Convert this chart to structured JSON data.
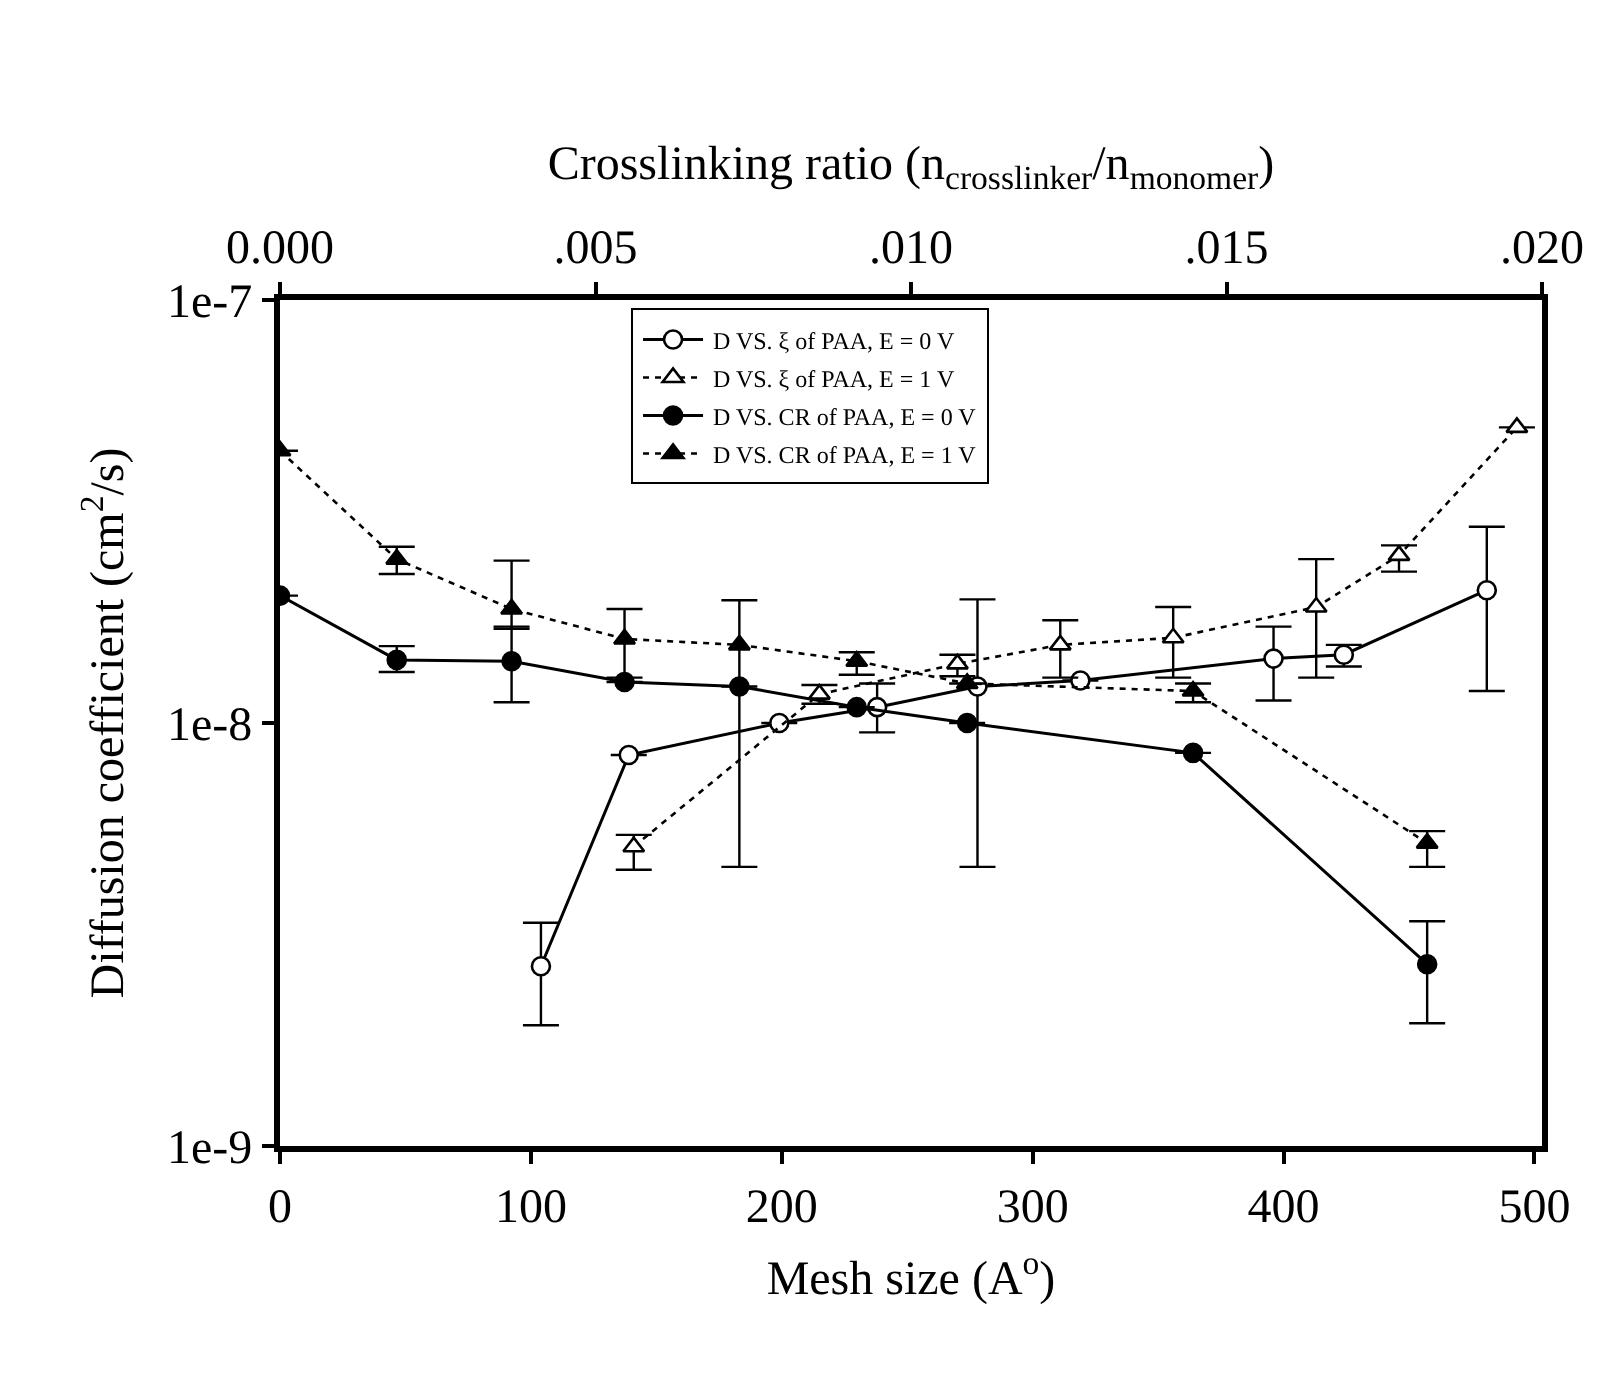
{
  "chart_data": {
    "type": "line",
    "xlabel": "Mesh size (A$^{o}$)",
    "ylabel": "Diffusion coefficient (cm$^{2}$/s)",
    "x2label": "Crosslinking ratio (n$_{crosslinker}$/n$_{monomer}$)",
    "xlim": [
      0,
      503
    ],
    "xticks": [
      0,
      100,
      200,
      300,
      400,
      500
    ],
    "x2lim": [
      0,
      0.02
    ],
    "x2ticks": [
      {
        "value": 0,
        "label": "0.000"
      },
      {
        "value": 0.005,
        "label": ".005"
      },
      {
        "value": 0.01,
        "label": ".010"
      },
      {
        "value": 0.015,
        "label": ".015"
      },
      {
        "value": 0.02,
        "label": ".020"
      }
    ],
    "log": "y",
    "ylim": [
      1e-09,
      1e-07
    ],
    "yticks": [
      {
        "value": 1e-07,
        "label": "1e-7"
      },
      {
        "value": 1e-08,
        "label": "1e-8"
      },
      {
        "value": 1e-09,
        "label": "1e-9"
      }
    ],
    "legend": "top",
    "series": [
      {
        "name": "D VS. ξ of PAA, E = 0 V",
        "color": "#000000",
        "marker": "circle",
        "line_style": "solid",
        "x": [
          104,
          139,
          199,
          238,
          278,
          319,
          396,
          424,
          481
        ],
        "values": [
          2.66e-09,
          8.4e-09,
          1e-08,
          1.09e-08,
          1.22e-08,
          1.26e-08,
          1.42e-08,
          1.45e-08,
          2.06e-08
        ],
        "errors": [
          [
            1.93e-09,
            3.37e-09
          ],
          null,
          null,
          [
            9.5e-09,
            1.24e-08
          ],
          [
            4.57e-09,
            1.96e-08
          ],
          null,
          [
            1.13e-08,
            1.69e-08
          ],
          [
            1.36e-08,
            1.53e-08
          ],
          [
            1.19e-08,
            2.91e-08
          ]
        ]
      },
      {
        "name": "D VS. ξ of PAA, E = 1 V",
        "color": "#000000",
        "marker": "triangle",
        "line_style": "dotted",
        "x": [
          141,
          215,
          270,
          311,
          356,
          413,
          446,
          493
        ],
        "values": [
          5.1e-09,
          1.17e-08,
          1.38e-08,
          1.53e-08,
          1.59e-08,
          1.88e-08,
          2.49e-08,
          5e-08
        ],
        "errors": [
          [
            4.5e-09,
            5.44e-09
          ],
          [
            1.11e-08,
            1.23e-08
          ],
          [
            1.29e-08,
            1.45e-08
          ],
          [
            1.28e-08,
            1.75e-08
          ],
          [
            1.28e-08,
            1.88e-08
          ],
          [
            1.28e-08,
            2.44e-08
          ],
          [
            2.28e-08,
            2.63e-08
          ],
          null
        ]
      },
      {
        "name": "D VS. CR of PAA, E = 0 V",
        "color": "#000000",
        "marker": "circle",
        "line_style": "solid",
        "axis": "x2",
        "x": [
          0,
          0.00185,
          0.00367,
          0.00546,
          0.00728,
          0.00914,
          0.01089,
          0.01447,
          0.01818
        ],
        "values": [
          2e-08,
          1.41e-08,
          1.4e-08,
          1.25e-08,
          1.22e-08,
          1.09e-08,
          1e-08,
          8.5e-09,
          2.69e-09
        ],
        "errors": [
          null,
          [
            1.32e-08,
            1.52e-08
          ],
          [
            1.12e-08,
            1.69e-08
          ],
          null,
          null,
          null,
          null,
          null,
          [
            1.95e-09,
            3.4e-09
          ]
        ]
      },
      {
        "name": "D VS. CR of PAA, E = 1 V",
        "color": "#000000",
        "marker": "triangle",
        "line_style": "dotted",
        "axis": "x2",
        "x": [
          0,
          0.00185,
          0.00367,
          0.00546,
          0.00728,
          0.00914,
          0.01089,
          0.01447,
          0.01818
        ],
        "values": [
          4.4e-08,
          2.44e-08,
          1.86e-08,
          1.58e-08,
          1.53e-08,
          1.4e-08,
          1.24e-08,
          1.19e-08,
          5.2e-09
        ],
        "errors": [
          null,
          [
            2.25e-08,
            2.61e-08
          ],
          [
            1.67e-08,
            2.42e-08
          ],
          [
            1.28e-08,
            1.86e-08
          ],
          [
            4.57e-09,
            1.95e-08
          ],
          [
            1.3e-08,
            1.47e-08
          ],
          null,
          [
            1.12e-08,
            1.24e-08
          ],
          [
            4.57e-09,
            5.55e-09
          ]
        ]
      }
    ]
  }
}
